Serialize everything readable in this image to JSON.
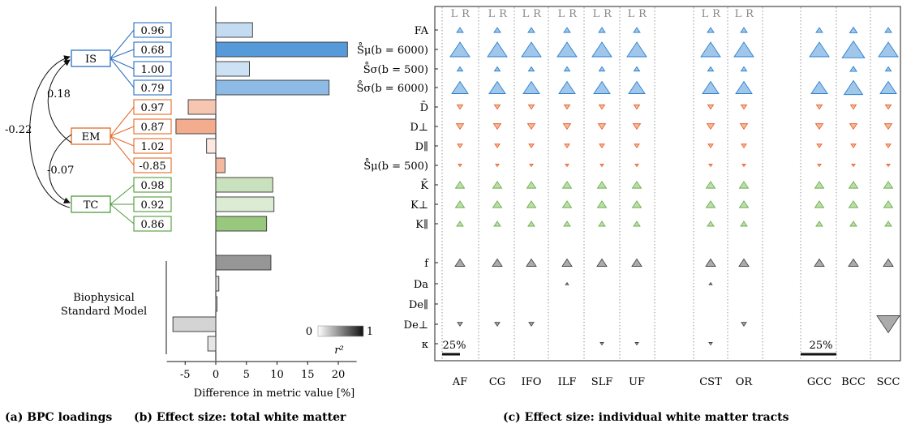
{
  "panel_a": {
    "caption": "(a) BPC loadings",
    "latents": [
      {
        "id": "IS",
        "label": "IS",
        "color": "#2a6fc2"
      },
      {
        "id": "EM",
        "label": "EM",
        "color": "#e36b26"
      },
      {
        "id": "TC",
        "label": "TC",
        "color": "#4f9a3a"
      }
    ],
    "loadings": [
      {
        "latent": "IS",
        "value": "0.96"
      },
      {
        "latent": "IS",
        "value": "0.68"
      },
      {
        "latent": "IS",
        "value": "1.00"
      },
      {
        "latent": "IS",
        "value": "0.79"
      },
      {
        "latent": "EM",
        "value": "0.97"
      },
      {
        "latent": "EM",
        "value": "0.87"
      },
      {
        "latent": "EM",
        "value": "1.02"
      },
      {
        "latent": "EM",
        "value": "-0.85"
      },
      {
        "latent": "TC",
        "value": "0.98"
      },
      {
        "latent": "TC",
        "value": "0.92"
      },
      {
        "latent": "TC",
        "value": "0.86"
      }
    ],
    "correlations": [
      {
        "from": "IS",
        "to": "EM",
        "value": "0.18"
      },
      {
        "from": "EM",
        "to": "TC",
        "value": "-0.07"
      },
      {
        "from": "IS",
        "to": "TC",
        "value": "-0.22"
      }
    ],
    "bsm_label": [
      "Biophysical",
      "Standard Model"
    ]
  },
  "chart_data": {
    "type": "bar",
    "orientation": "horizontal",
    "caption": "(b) Effect size: total white matter",
    "xlabel": "Difference in metric value [%]",
    "xlim": [
      -8,
      23
    ],
    "xticks": [
      "-5",
      "0",
      "5",
      "10",
      "15",
      "20"
    ],
    "colorbar": {
      "label": "r²",
      "min_label": "0",
      "max_label": "1"
    },
    "bars": [
      {
        "row": "FA",
        "value": 6.0,
        "r2": 0.15,
        "group": "IS"
      },
      {
        "row": "S_mu_6000",
        "value": 21.5,
        "r2": 0.75,
        "group": "IS"
      },
      {
        "row": "S_sigma_500",
        "value": 5.5,
        "r2": 0.1,
        "group": "IS"
      },
      {
        "row": "S_sigma_6000",
        "value": 18.5,
        "r2": 0.45,
        "group": "IS"
      },
      {
        "row": "D_bar",
        "value": -4.5,
        "r2": 0.25,
        "group": "EM"
      },
      {
        "row": "D_perp",
        "value": -6.5,
        "r2": 0.45,
        "group": "EM"
      },
      {
        "row": "D_par",
        "value": -1.5,
        "r2": 0.0,
        "group": "EM"
      },
      {
        "row": "S_mu_500",
        "value": 1.5,
        "r2": 0.35,
        "group": "EM"
      },
      {
        "row": "K_bar",
        "value": 9.3,
        "r2": 0.25,
        "group": "TC"
      },
      {
        "row": "K_perp",
        "value": 9.5,
        "r2": 0.1,
        "group": "TC"
      },
      {
        "row": "K_par",
        "value": 8.3,
        "r2": 0.65,
        "group": "TC"
      },
      {
        "row": "f",
        "value": 9.0,
        "r2": 0.55,
        "group": "BSM"
      },
      {
        "row": "D_a",
        "value": 0.5,
        "r2": 0.1,
        "group": "BSM"
      },
      {
        "row": "D_e_par",
        "value": 0.2,
        "r2": 0.0,
        "group": "BSM"
      },
      {
        "row": "D_e_perp",
        "value": -7.0,
        "r2": 0.12,
        "group": "BSM"
      },
      {
        "row": "kappa",
        "value": -1.3,
        "r2": 0.0,
        "group": "BSM"
      }
    ]
  },
  "panel_c": {
    "caption": "(c) Effect size: individual white matter tracts",
    "rows": [
      {
        "id": "FA",
        "label": "FA",
        "group": "IS"
      },
      {
        "id": "S_mu_6000",
        "label": "S̊μ(b = 6000)",
        "group": "IS"
      },
      {
        "id": "S_sigma_500",
        "label": "S̊σ(b = 500)",
        "group": "IS"
      },
      {
        "id": "S_sigma_6000",
        "label": "S̊σ(b = 6000)",
        "group": "IS"
      },
      {
        "id": "D_bar",
        "label": "D̄",
        "group": "EM"
      },
      {
        "id": "D_perp",
        "label": "D⊥",
        "group": "EM"
      },
      {
        "id": "D_par",
        "label": "D∥",
        "group": "EM"
      },
      {
        "id": "S_mu_500",
        "label": "S̊μ(b = 500)",
        "group": "EM"
      },
      {
        "id": "K_bar",
        "label": "K̄",
        "group": "TC"
      },
      {
        "id": "K_perp",
        "label": "K⊥",
        "group": "TC"
      },
      {
        "id": "K_par",
        "label": "K∥",
        "group": "TC"
      },
      {
        "id": "f",
        "label": "f",
        "group": "BSM"
      },
      {
        "id": "D_a",
        "label": "Da",
        "group": "BSM"
      },
      {
        "id": "D_e_par",
        "label": "De∥",
        "group": "BSM"
      },
      {
        "id": "D_e_perp",
        "label": "De⊥",
        "group": "BSM"
      },
      {
        "id": "kappa",
        "label": "κ",
        "group": "BSM"
      }
    ],
    "bilateral_tracts": [
      "AF",
      "CG",
      "IFO",
      "ILF",
      "SLF",
      "UF"
    ],
    "projection_tracts": [
      "CST",
      "OR"
    ],
    "cc_tracts": [
      "GCC",
      "BCC",
      "SCC"
    ],
    "side_labels": {
      "left": "L",
      "right": "R"
    },
    "scale_bar_label": "25%",
    "group_colors": {
      "IS": "#2a7fd0",
      "EM": "#e8632a",
      "TC": "#6bb048",
      "BSM": "#444444"
    }
  }
}
